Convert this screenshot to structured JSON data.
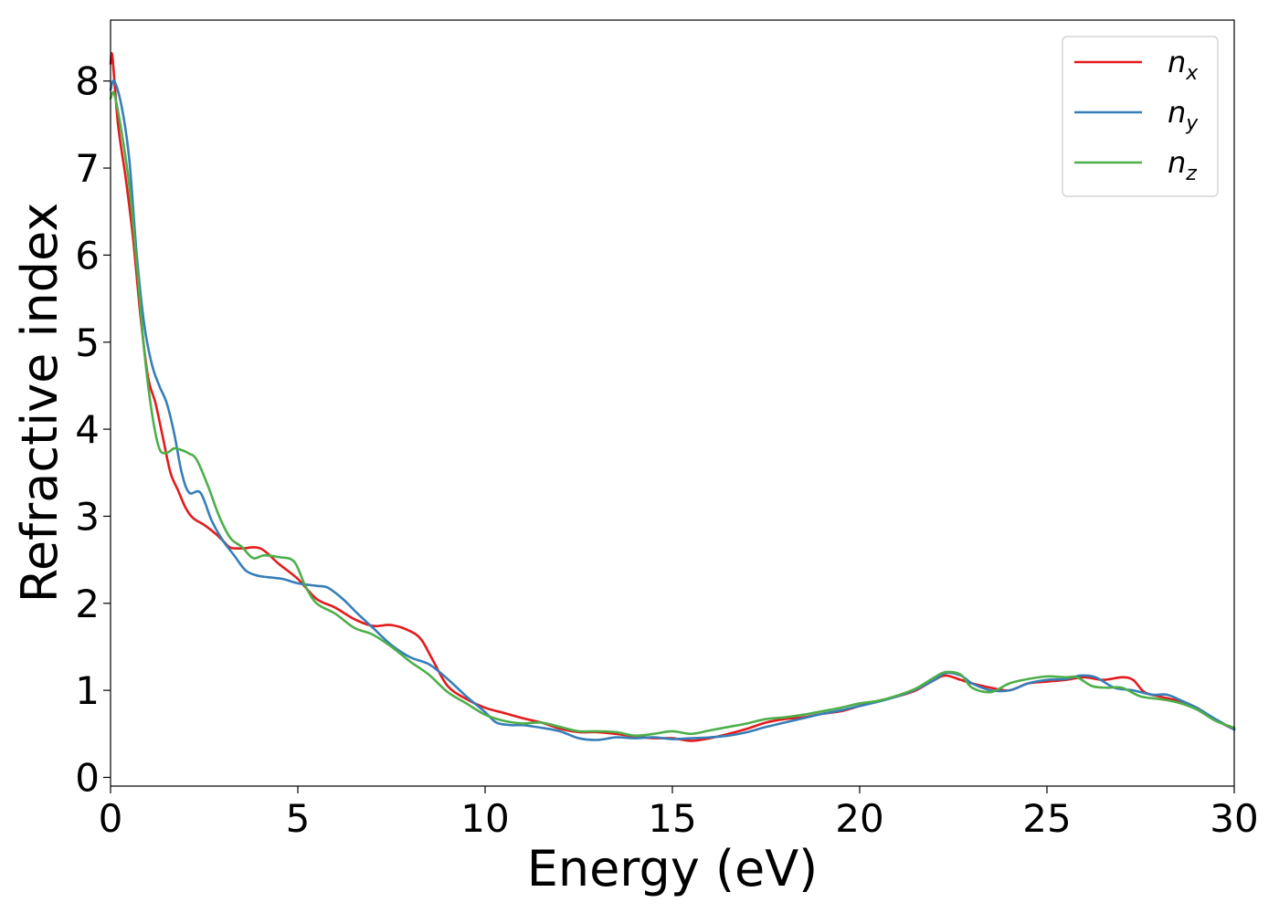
{
  "chart_data": {
    "type": "line",
    "title": "",
    "xlabel": "Energy (eV)",
    "ylabel": "Refractive index",
    "xlim": [
      0,
      30
    ],
    "ylim": [
      -0.1,
      8.7
    ],
    "xticks": [
      0,
      5,
      10,
      15,
      20,
      25,
      30
    ],
    "yticks": [
      0,
      1,
      2,
      3,
      4,
      5,
      6,
      7,
      8
    ],
    "grid": false,
    "legend_position": "top-right",
    "series": [
      {
        "name": "n",
        "subscript": "x",
        "color": "#e41a1c",
        "x": [
          0,
          0.05,
          0.2,
          0.4,
          0.6,
          0.8,
          1.0,
          1.2,
          1.4,
          1.6,
          1.8,
          2.0,
          2.2,
          2.5,
          2.8,
          3.0,
          3.2,
          3.5,
          4.0,
          4.5,
          5.0,
          5.5,
          6.0,
          6.5,
          7.0,
          7.5,
          8.0,
          8.3,
          8.6,
          9.0,
          9.5,
          10.0,
          10.5,
          11.0,
          11.5,
          12.0,
          12.5,
          13.0,
          13.5,
          14.0,
          14.5,
          15.0,
          15.5,
          16.0,
          16.5,
          17.0,
          17.5,
          18.0,
          18.5,
          19.0,
          19.5,
          20.0,
          20.5,
          21.0,
          21.5,
          22.0,
          22.3,
          22.7,
          23.0,
          23.5,
          24.0,
          24.5,
          25.0,
          25.5,
          26.0,
          26.5,
          27.0,
          27.3,
          27.6,
          28.0,
          28.5,
          29.0,
          29.5,
          30.0
        ],
        "y": [
          8.2,
          8.28,
          7.5,
          6.9,
          6.2,
          5.3,
          4.6,
          4.3,
          3.9,
          3.5,
          3.3,
          3.1,
          2.98,
          2.9,
          2.8,
          2.72,
          2.64,
          2.63,
          2.63,
          2.45,
          2.28,
          2.05,
          1.95,
          1.82,
          1.74,
          1.75,
          1.68,
          1.58,
          1.35,
          1.05,
          0.9,
          0.8,
          0.74,
          0.68,
          0.63,
          0.56,
          0.52,
          0.52,
          0.5,
          0.47,
          0.45,
          0.45,
          0.42,
          0.45,
          0.5,
          0.56,
          0.63,
          0.67,
          0.69,
          0.73,
          0.76,
          0.82,
          0.88,
          0.93,
          1.0,
          1.12,
          1.17,
          1.12,
          1.08,
          1.03,
          1.0,
          1.08,
          1.1,
          1.12,
          1.15,
          1.12,
          1.15,
          1.12,
          0.98,
          0.93,
          0.88,
          0.8,
          0.66,
          0.55
        ]
      },
      {
        "name": "n",
        "subscript": "y",
        "color": "#377eb8",
        "x": [
          0,
          0.1,
          0.3,
          0.5,
          0.7,
          0.9,
          1.1,
          1.3,
          1.5,
          1.7,
          1.9,
          2.1,
          2.4,
          2.7,
          3.0,
          3.3,
          3.6,
          3.9,
          4.2,
          4.6,
          5.0,
          5.5,
          5.8,
          6.2,
          6.6,
          7.0,
          7.5,
          8.0,
          8.5,
          9.0,
          9.5,
          10.0,
          10.3,
          10.7,
          11.0,
          11.5,
          12.0,
          12.5,
          13.0,
          13.5,
          14.0,
          14.5,
          15.0,
          15.5,
          16.0,
          16.5,
          17.0,
          17.5,
          18.0,
          18.5,
          19.0,
          19.5,
          20.0,
          20.5,
          21.0,
          21.5,
          22.0,
          22.3,
          22.7,
          23.0,
          23.5,
          24.0,
          24.5,
          25.0,
          25.5,
          25.9,
          26.3,
          26.8,
          27.3,
          27.8,
          28.2,
          28.6,
          29.0,
          29.5,
          30.0
        ],
        "y": [
          7.9,
          8.0,
          7.7,
          7.1,
          6.0,
          5.2,
          4.75,
          4.5,
          4.3,
          3.95,
          3.5,
          3.27,
          3.27,
          2.95,
          2.72,
          2.55,
          2.38,
          2.32,
          2.3,
          2.28,
          2.23,
          2.2,
          2.18,
          2.05,
          1.88,
          1.72,
          1.52,
          1.38,
          1.3,
          1.13,
          0.93,
          0.75,
          0.63,
          0.6,
          0.6,
          0.57,
          0.53,
          0.45,
          0.43,
          0.46,
          0.45,
          0.46,
          0.44,
          0.45,
          0.46,
          0.48,
          0.52,
          0.58,
          0.63,
          0.68,
          0.73,
          0.77,
          0.82,
          0.87,
          0.93,
          1.01,
          1.12,
          1.2,
          1.17,
          1.08,
          1.0,
          1.0,
          1.08,
          1.12,
          1.13,
          1.17,
          1.15,
          1.03,
          1.0,
          0.95,
          0.95,
          0.88,
          0.8,
          0.67,
          0.55
        ]
      },
      {
        "name": "n",
        "subscript": "z",
        "color": "#4daf4a",
        "x": [
          0,
          0.1,
          0.3,
          0.5,
          0.7,
          0.9,
          1.1,
          1.3,
          1.5,
          1.7,
          1.9,
          2.1,
          2.3,
          2.6,
          2.9,
          3.2,
          3.5,
          3.8,
          4.1,
          4.5,
          4.9,
          5.2,
          5.5,
          6.0,
          6.5,
          7.0,
          7.5,
          8.0,
          8.5,
          9.0,
          9.5,
          10.0,
          10.5,
          11.0,
          11.5,
          12.0,
          12.5,
          13.0,
          13.5,
          14.0,
          14.5,
          15.0,
          15.5,
          16.0,
          16.5,
          17.0,
          17.5,
          18.0,
          18.5,
          19.0,
          19.5,
          20.0,
          20.5,
          21.0,
          21.5,
          22.0,
          22.3,
          22.7,
          23.0,
          23.5,
          24.0,
          24.5,
          25.0,
          25.5,
          25.8,
          26.2,
          26.6,
          27.0,
          27.5,
          28.0,
          28.5,
          29.0,
          29.5,
          30.0
        ],
        "y": [
          7.8,
          7.85,
          7.4,
          6.8,
          5.9,
          4.9,
          4.2,
          3.78,
          3.73,
          3.78,
          3.76,
          3.72,
          3.65,
          3.35,
          3.0,
          2.75,
          2.65,
          2.52,
          2.55,
          2.53,
          2.48,
          2.2,
          2.0,
          1.88,
          1.72,
          1.64,
          1.5,
          1.33,
          1.18,
          0.98,
          0.85,
          0.72,
          0.65,
          0.62,
          0.63,
          0.58,
          0.53,
          0.53,
          0.52,
          0.48,
          0.5,
          0.53,
          0.5,
          0.54,
          0.58,
          0.62,
          0.67,
          0.69,
          0.72,
          0.76,
          0.8,
          0.85,
          0.88,
          0.94,
          1.02,
          1.15,
          1.21,
          1.18,
          1.03,
          0.98,
          1.08,
          1.13,
          1.16,
          1.15,
          1.15,
          1.05,
          1.03,
          1.03,
          0.93,
          0.9,
          0.86,
          0.78,
          0.65,
          0.57
        ]
      }
    ]
  }
}
